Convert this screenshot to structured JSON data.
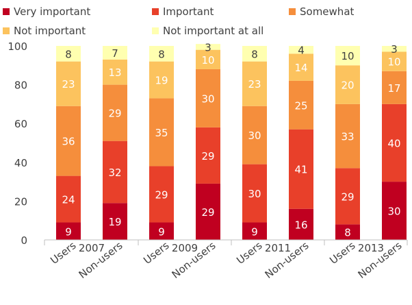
{
  "chart_data": {
    "type": "bar",
    "stacked": true,
    "title": "",
    "xlabel": "",
    "ylabel": "",
    "ylim": [
      0,
      100
    ],
    "yticks": [
      0,
      20,
      40,
      60,
      80,
      100
    ],
    "grid": false,
    "legend_position": "top",
    "groups": [
      "2007",
      "2009",
      "2011",
      "2013"
    ],
    "categories": [
      "Users",
      "Non-users",
      "Users",
      "Non-users",
      "Users",
      "Non-users",
      "Users",
      "Non-users"
    ],
    "category_group": [
      0,
      0,
      1,
      1,
      2,
      2,
      3,
      3
    ],
    "series": [
      {
        "name": "Very important",
        "color": "#c00020",
        "label_color": "#ffffff",
        "values": [
          9,
          19,
          9,
          29,
          9,
          16,
          8,
          30
        ]
      },
      {
        "name": "Important",
        "color": "#e8402a",
        "label_color": "#ffffff",
        "values": [
          24,
          32,
          29,
          29,
          30,
          41,
          29,
          40
        ]
      },
      {
        "name": "Somewhat",
        "color": "#f58e3c",
        "label_color": "#ffffff",
        "values": [
          36,
          29,
          35,
          30,
          30,
          25,
          33,
          17
        ]
      },
      {
        "name": "Not important",
        "color": "#fcc35e",
        "label_color": "#ffffff",
        "values": [
          23,
          13,
          19,
          10,
          23,
          14,
          20,
          10
        ]
      },
      {
        "name": "Not important at all",
        "color": "#ffffb0",
        "label_color": "#404040",
        "values": [
          8,
          7,
          8,
          3,
          8,
          4,
          10,
          3
        ]
      }
    ]
  }
}
